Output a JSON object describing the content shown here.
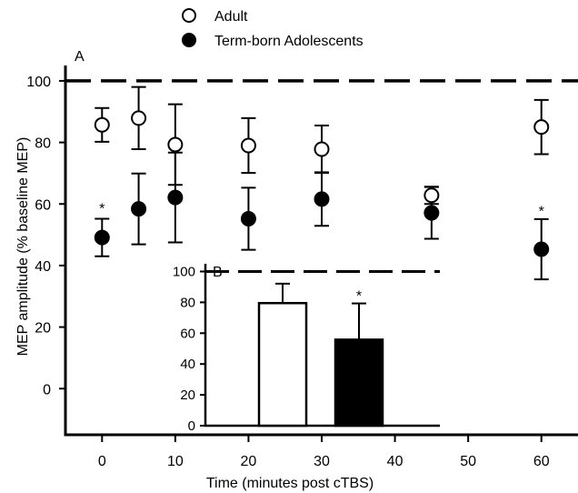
{
  "chart_data": [
    {
      "type": "scatter",
      "panel_label": "A",
      "xlabel": "Time (minutes post cTBS)",
      "ylabel": "MEP amplitude (% baseline MEP)",
      "xlim": [
        -5,
        65
      ],
      "ylim": [
        -15,
        105
      ],
      "xticks": [
        0,
        10,
        20,
        30,
        40,
        50,
        60
      ],
      "yticks": [
        0,
        20,
        40,
        60,
        80,
        100
      ],
      "reference_line": 100,
      "legend_position": "top-left, above plot",
      "series": [
        {
          "name": "Adult",
          "marker": "open-circle",
          "x": [
            0,
            5,
            10,
            20,
            30,
            45,
            60
          ],
          "y": [
            85.7,
            87.9,
            79.3,
            79.0,
            77.8,
            62.8,
            85.0
          ],
          "error": [
            5.5,
            10.1,
            13.1,
            8.9,
            7.7,
            2.8,
            8.8
          ]
        },
        {
          "name": "Term-born Adolescents",
          "marker": "filled-circle",
          "x": [
            0,
            5,
            10,
            20,
            30,
            45,
            60
          ],
          "y": [
            49.1,
            58.4,
            62.1,
            55.2,
            61.6,
            57.1,
            45.3
          ],
          "error": [
            6.1,
            11.5,
            14.6,
            10.1,
            8.7,
            8.4,
            9.8
          ]
        }
      ],
      "annotations": [
        {
          "text": "*",
          "x": 0,
          "y": 60
        },
        {
          "text": "*",
          "x": 60,
          "y": 59
        }
      ]
    },
    {
      "type": "bar",
      "panel_label": "B",
      "ylim": [
        0,
        105
      ],
      "yticks": [
        0,
        20,
        40,
        60,
        80,
        100
      ],
      "reference_line": 100,
      "categories": [
        "Adult",
        "Term-born Adolescents"
      ],
      "values": [
        79.5,
        55.8
      ],
      "errors": [
        12.6,
        23.5
      ],
      "colors": [
        "#ffffff",
        "#000000"
      ],
      "annotations": [
        {
          "text": "*",
          "category": 1
        }
      ]
    }
  ],
  "legend": {
    "items": [
      {
        "label": "Adult",
        "marker": "open-circle"
      },
      {
        "label": "Term-born Adolescents",
        "marker": "filled-circle"
      }
    ]
  }
}
